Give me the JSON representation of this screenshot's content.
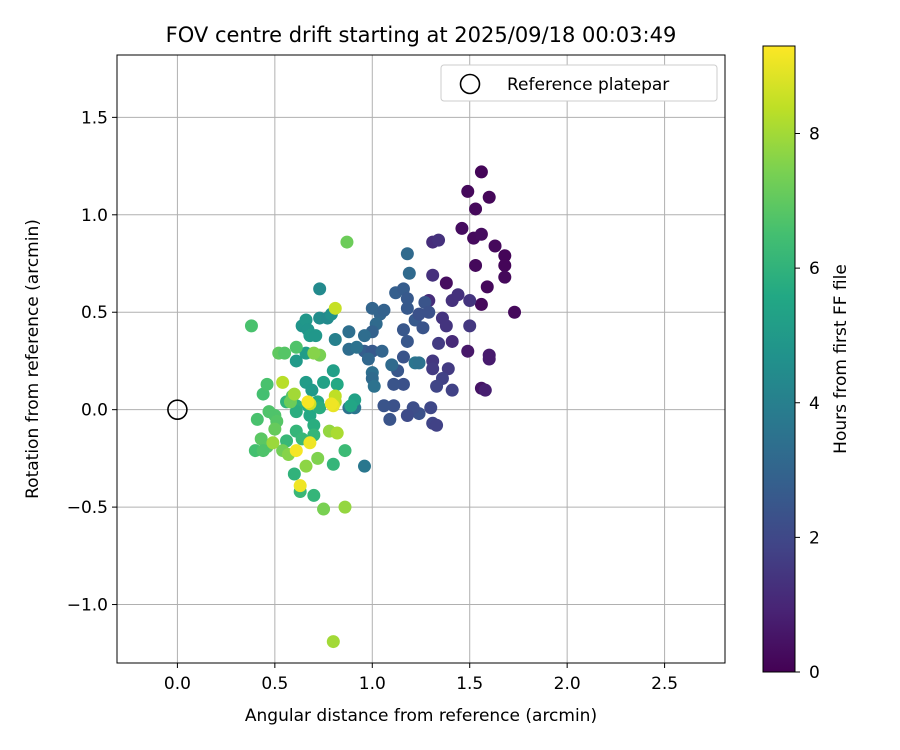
{
  "chart_data": {
    "type": "scatter",
    "title": "FOV centre drift starting at 2025/09/18 00:03:49",
    "xlabel": "Angular distance from reference (arcmin)",
    "ylabel": "Rotation from reference (arcmin)",
    "xlim": [
      -0.31,
      2.81
    ],
    "ylim": [
      -1.3,
      1.82
    ],
    "xticks": [
      0.0,
      0.5,
      1.0,
      1.5,
      2.0,
      2.5
    ],
    "xtick_labels": [
      "0.0",
      "0.5",
      "1.0",
      "1.5",
      "2.0",
      "2.5"
    ],
    "yticks": [
      -1.0,
      -0.5,
      0.0,
      0.5,
      1.0,
      1.5
    ],
    "ytick_labels": [
      "−1.0",
      "−0.5",
      "0.0",
      "0.5",
      "1.0",
      "1.5"
    ],
    "grid": true,
    "legend": {
      "placement": "top-right",
      "entries": [
        "Reference platepar"
      ]
    },
    "colormap": "viridis",
    "colorbar": {
      "label": "Hours from first FF file",
      "range": [
        0,
        9.3
      ],
      "ticks": [
        0,
        2,
        4,
        6,
        8
      ],
      "tick_labels": [
        "0",
        "2",
        "4",
        "6",
        "8"
      ]
    },
    "reference_point": {
      "x": 0.0,
      "y": 0.0,
      "label": "Reference platepar"
    },
    "points": [
      [
        1.56,
        1.22,
        0.1
      ],
      [
        1.49,
        1.12,
        0.2
      ],
      [
        1.6,
        1.09,
        0.15
      ],
      [
        1.53,
        1.03,
        0.2
      ],
      [
        1.46,
        0.93,
        0.3
      ],
      [
        1.52,
        0.88,
        0.25
      ],
      [
        1.56,
        0.9,
        0.3
      ],
      [
        1.63,
        0.84,
        0.2
      ],
      [
        1.68,
        0.79,
        0.1
      ],
      [
        1.68,
        0.74,
        0.1
      ],
      [
        1.68,
        0.68,
        0.2
      ],
      [
        1.53,
        0.74,
        0.2
      ],
      [
        1.59,
        0.63,
        0.2
      ],
      [
        1.56,
        0.54,
        0.2
      ],
      [
        1.73,
        0.5,
        0.2
      ],
      [
        1.38,
        0.65,
        0.35
      ],
      [
        1.31,
        0.86,
        1.2
      ],
      [
        1.34,
        0.87,
        1.3
      ],
      [
        1.29,
        0.56,
        1.2
      ],
      [
        1.31,
        0.69,
        1.3
      ],
      [
        1.36,
        0.47,
        1.4
      ],
      [
        1.41,
        0.56,
        1.3
      ],
      [
        1.44,
        0.59,
        1.3
      ],
      [
        1.5,
        0.56,
        1.4
      ],
      [
        1.5,
        0.43,
        1.5
      ],
      [
        1.38,
        0.43,
        1.4
      ],
      [
        1.41,
        0.35,
        1.1
      ],
      [
        1.34,
        0.34,
        1.6
      ],
      [
        1.49,
        0.3,
        0.6
      ],
      [
        1.6,
        0.28,
        0.7
      ],
      [
        1.6,
        0.26,
        0.7
      ],
      [
        1.56,
        0.11,
        0.5
      ],
      [
        1.58,
        0.1,
        0.8
      ],
      [
        1.31,
        0.25,
        1.5
      ],
      [
        1.31,
        0.21,
        1.6
      ],
      [
        1.39,
        0.21,
        1.6
      ],
      [
        1.36,
        0.16,
        1.8
      ],
      [
        1.33,
        0.12,
        1.9
      ],
      [
        1.41,
        0.1,
        1.8
      ],
      [
        1.3,
        0.01,
        2.0
      ],
      [
        1.31,
        -0.07,
        1.9
      ],
      [
        1.33,
        -0.08,
        1.8
      ],
      [
        1.24,
        -0.02,
        2.3
      ],
      [
        1.21,
        0.01,
        2.2
      ],
      [
        1.18,
        -0.03,
        2.1
      ],
      [
        1.11,
        0.02,
        2.3
      ],
      [
        1.06,
        0.02,
        2.4
      ],
      [
        1.09,
        -0.05,
        2.4
      ],
      [
        1.16,
        0.13,
        2.3
      ],
      [
        1.11,
        0.13,
        2.4
      ],
      [
        1.13,
        0.2,
        2.5
      ],
      [
        1.16,
        0.27,
        2.4
      ],
      [
        1.22,
        0.24,
        3.6
      ],
      [
        1.24,
        0.24,
        3.5
      ],
      [
        1.18,
        0.35,
        2.5
      ],
      [
        1.22,
        0.46,
        2.6
      ],
      [
        1.18,
        0.52,
        2.6
      ],
      [
        1.12,
        0.6,
        2.8
      ],
      [
        1.16,
        0.62,
        2.7
      ],
      [
        1.18,
        0.57,
        2.6
      ],
      [
        1.16,
        0.41,
        2.5
      ],
      [
        1.24,
        0.49,
        2.3
      ],
      [
        1.27,
        0.55,
        2.4
      ],
      [
        1.26,
        0.42,
        2.4
      ],
      [
        1.29,
        0.5,
        2.3
      ],
      [
        1.18,
        0.8,
        3.2
      ],
      [
        1.19,
        0.7,
        3.2
      ],
      [
        1.0,
        0.52,
        3.0
      ],
      [
        1.04,
        0.49,
        3.0
      ],
      [
        1.06,
        0.51,
        2.9
      ],
      [
        1.02,
        0.44,
        3.2
      ],
      [
        1.0,
        0.4,
        2.9
      ],
      [
        0.96,
        0.38,
        3.3
      ],
      [
        0.96,
        0.3,
        2.8
      ],
      [
        1.0,
        0.3,
        2.6
      ],
      [
        1.05,
        0.3,
        3.0
      ],
      [
        0.98,
        0.26,
        3.1
      ],
      [
        1.1,
        0.23,
        3.2
      ],
      [
        1.0,
        0.19,
        3.4
      ],
      [
        1.0,
        0.16,
        3.2
      ],
      [
        1.01,
        0.12,
        3.5
      ],
      [
        0.88,
        0.31,
        3.3
      ],
      [
        0.88,
        0.4,
        3.4
      ],
      [
        0.92,
        0.32,
        3.5
      ],
      [
        0.88,
        0.01,
        3.5
      ],
      [
        0.91,
        0.01,
        3.6
      ],
      [
        0.96,
        -0.29,
        3.7
      ],
      [
        0.81,
        0.36,
        4.0
      ],
      [
        0.73,
        0.62,
        4.4
      ],
      [
        0.73,
        0.47,
        4.5
      ],
      [
        0.77,
        0.47,
        4.4
      ],
      [
        0.79,
        0.49,
        4.6
      ],
      [
        0.64,
        0.43,
        4.8
      ],
      [
        0.66,
        0.46,
        4.9
      ],
      [
        0.67,
        0.41,
        4.8
      ],
      [
        0.68,
        0.38,
        5.0
      ],
      [
        0.71,
        0.38,
        4.9
      ],
      [
        0.66,
        0.29,
        5.1
      ],
      [
        0.61,
        0.25,
        5.0
      ],
      [
        0.66,
        0.14,
        5.1
      ],
      [
        0.69,
        0.1,
        5.0
      ],
      [
        0.75,
        0.14,
        5.3
      ],
      [
        0.8,
        0.2,
        5.2
      ],
      [
        0.82,
        0.13,
        5.6
      ],
      [
        0.91,
        0.05,
        5.3
      ],
      [
        0.89,
        0.02,
        5.5
      ],
      [
        0.72,
        0.04,
        5.6
      ],
      [
        0.67,
        0.02,
        5.7
      ],
      [
        0.68,
        -0.03,
        5.6
      ],
      [
        0.7,
        -0.08,
        5.8
      ],
      [
        0.7,
        -0.13,
        6.1
      ],
      [
        0.73,
        0.01,
        5.8
      ],
      [
        0.61,
        0.02,
        5.9
      ],
      [
        0.61,
        -0.01,
        5.8
      ],
      [
        0.56,
        0.04,
        6.0
      ],
      [
        0.61,
        -0.11,
        6.1
      ],
      [
        0.56,
        -0.16,
        6.2
      ],
      [
        0.64,
        -0.15,
        6.2
      ],
      [
        0.6,
        -0.33,
        6.0
      ],
      [
        0.63,
        -0.42,
        6.2
      ],
      [
        0.7,
        -0.44,
        6.1
      ],
      [
        0.8,
        -0.28,
        6.1
      ],
      [
        0.86,
        -0.21,
        6.3
      ],
      [
        0.44,
        0.08,
        6.5
      ],
      [
        0.46,
        0.13,
        6.6
      ],
      [
        0.47,
        -0.01,
        6.7
      ],
      [
        0.5,
        -0.03,
        6.7
      ],
      [
        0.51,
        -0.06,
        6.8
      ],
      [
        0.41,
        -0.05,
        6.6
      ],
      [
        0.43,
        -0.15,
        6.9
      ],
      [
        0.46,
        -0.19,
        6.9
      ],
      [
        0.4,
        -0.21,
        6.5
      ],
      [
        0.44,
        -0.21,
        6.7
      ],
      [
        0.54,
        -0.21,
        7.3
      ],
      [
        0.5,
        -0.1,
        7.1
      ],
      [
        0.38,
        0.43,
        6.6
      ],
      [
        0.52,
        0.29,
        7.0
      ],
      [
        0.55,
        0.29,
        6.8
      ],
      [
        0.61,
        0.32,
        6.7
      ],
      [
        0.59,
        0.07,
        6.8
      ],
      [
        0.58,
        0.04,
        7.2
      ],
      [
        0.87,
        0.86,
        7.2
      ],
      [
        0.73,
        0.28,
        7.4
      ],
      [
        0.57,
        -0.23,
        7.6
      ],
      [
        0.66,
        -0.29,
        7.7
      ],
      [
        0.72,
        -0.25,
        7.5
      ],
      [
        0.75,
        -0.51,
        7.4
      ],
      [
        0.86,
        -0.5,
        7.8
      ],
      [
        0.8,
        -1.19,
        8.0
      ],
      [
        0.54,
        0.14,
        8.3
      ],
      [
        0.6,
        0.08,
        8.0
      ],
      [
        0.49,
        -0.17,
        7.9
      ],
      [
        0.78,
        -0.11,
        7.8
      ],
      [
        0.82,
        -0.12,
        8.1
      ],
      [
        0.81,
        0.04,
        8.3
      ],
      [
        0.81,
        0.07,
        8.4
      ],
      [
        0.81,
        0.52,
        8.5
      ],
      [
        0.7,
        0.29,
        7.6
      ],
      [
        0.68,
        0.03,
        8.6
      ],
      [
        0.8,
        0.02,
        9.0
      ],
      [
        0.67,
        0.04,
        9.2
      ],
      [
        0.68,
        -0.17,
        9.1
      ],
      [
        0.61,
        -0.21,
        9.2
      ],
      [
        0.63,
        -0.39,
        9.1
      ],
      [
        0.79,
        0.03,
        9.1
      ]
    ]
  }
}
